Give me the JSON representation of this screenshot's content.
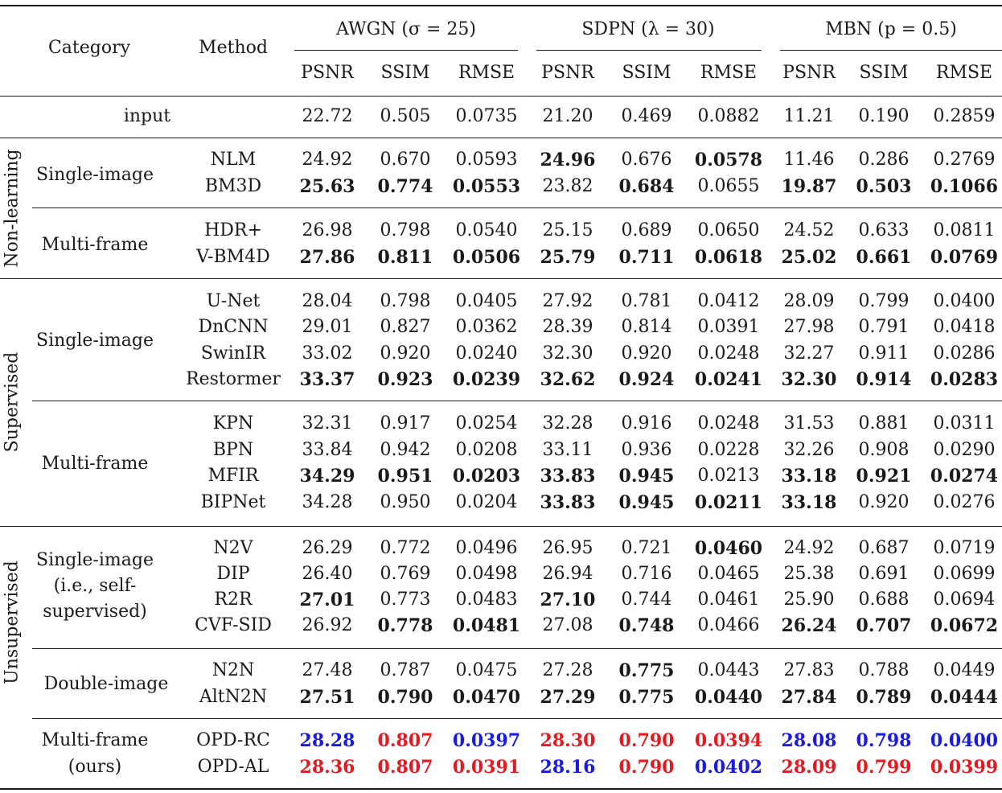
{
  "header": {
    "category": "Category",
    "method": "Method",
    "groups": [
      "AWGN (σ = 25)",
      "SDPN (λ = 30)",
      "MBN (p = 0.5)"
    ],
    "metrics": [
      "PSNR",
      "SSIM",
      "RMSE",
      "PSNR",
      "SSIM",
      "RMSE",
      "PSNR",
      "SSIM",
      "RMSE"
    ]
  },
  "input_row": {
    "label": "input",
    "values": [
      "22.72",
      "0.505",
      "0.0735",
      "21.20",
      "0.469",
      "0.0882",
      "11.21",
      "0.190",
      "0.2859"
    ]
  },
  "categories": {
    "nonlearning": "Non-learning",
    "supervised": "Supervised",
    "unsupervised": "Unsupervised"
  },
  "subcats": {
    "nl_single": "Single-image",
    "nl_multi": "Multi-frame",
    "sup_single": "Single-image",
    "sup_multi": "Multi-frame",
    "uns_single": [
      "Single-image",
      "(i.e., self-",
      "supervised)"
    ],
    "uns_double": "Double-image",
    "ours": [
      "Multi-frame",
      "(ours)"
    ]
  },
  "rows": [
    {
      "method": "NLM",
      "values": [
        "24.92",
        "0.670",
        "0.0593",
        "24.96",
        "0.676",
        "0.0578",
        "11.46",
        "0.286",
        "0.2769"
      ],
      "bold": [
        3,
        5
      ]
    },
    {
      "method": "BM3D",
      "values": [
        "25.63",
        "0.774",
        "0.0553",
        "23.82",
        "0.684",
        "0.0655",
        "19.87",
        "0.503",
        "0.1066"
      ],
      "bold": [
        0,
        1,
        2,
        4,
        6,
        7,
        8
      ]
    },
    {
      "method": "HDR+",
      "values": [
        "26.98",
        "0.798",
        "0.0540",
        "25.15",
        "0.689",
        "0.0650",
        "24.52",
        "0.633",
        "0.0811"
      ],
      "bold": []
    },
    {
      "method": "V-BM4D",
      "values": [
        "27.86",
        "0.811",
        "0.0506",
        "25.79",
        "0.711",
        "0.0618",
        "25.02",
        "0.661",
        "0.0769"
      ],
      "bold": [
        0,
        1,
        2,
        3,
        4,
        5,
        6,
        7,
        8
      ]
    },
    {
      "method": "U-Net",
      "values": [
        "28.04",
        "0.798",
        "0.0405",
        "27.92",
        "0.781",
        "0.0412",
        "28.09",
        "0.799",
        "0.0400"
      ],
      "bold": []
    },
    {
      "method": "DnCNN",
      "values": [
        "29.01",
        "0.827",
        "0.0362",
        "28.39",
        "0.814",
        "0.0391",
        "27.98",
        "0.791",
        "0.0418"
      ],
      "bold": []
    },
    {
      "method": "SwinIR",
      "values": [
        "33.02",
        "0.920",
        "0.0240",
        "32.30",
        "0.920",
        "0.0248",
        "32.27",
        "0.911",
        "0.0286"
      ],
      "bold": []
    },
    {
      "method": "Restormer",
      "values": [
        "33.37",
        "0.923",
        "0.0239",
        "32.62",
        "0.924",
        "0.0241",
        "32.30",
        "0.914",
        "0.0283"
      ],
      "bold": [
        0,
        1,
        2,
        3,
        4,
        5,
        6,
        7,
        8
      ]
    },
    {
      "method": "KPN",
      "values": [
        "32.31",
        "0.917",
        "0.0254",
        "32.28",
        "0.916",
        "0.0248",
        "31.53",
        "0.881",
        "0.0311"
      ],
      "bold": []
    },
    {
      "method": "BPN",
      "values": [
        "33.84",
        "0.942",
        "0.0208",
        "33.11",
        "0.936",
        "0.0228",
        "32.26",
        "0.908",
        "0.0290"
      ],
      "bold": []
    },
    {
      "method": "MFIR",
      "values": [
        "34.29",
        "0.951",
        "0.0203",
        "33.83",
        "0.945",
        "0.0213",
        "33.18",
        "0.921",
        "0.0274"
      ],
      "bold": [
        0,
        1,
        2,
        3,
        4,
        6,
        7,
        8
      ]
    },
    {
      "method": "BIPNet",
      "values": [
        "34.28",
        "0.950",
        "0.0204",
        "33.83",
        "0.945",
        "0.0211",
        "33.18",
        "0.920",
        "0.0276"
      ],
      "bold": [
        3,
        4,
        5,
        6
      ]
    },
    {
      "method": "N2V",
      "values": [
        "26.29",
        "0.772",
        "0.0496",
        "26.95",
        "0.721",
        "0.0460",
        "24.92",
        "0.687",
        "0.0719"
      ],
      "bold": [
        5
      ]
    },
    {
      "method": "DIP",
      "values": [
        "26.40",
        "0.769",
        "0.0498",
        "26.94",
        "0.716",
        "0.0465",
        "25.38",
        "0.691",
        "0.0699"
      ],
      "bold": []
    },
    {
      "method": "R2R",
      "values": [
        "27.01",
        "0.773",
        "0.0483",
        "27.10",
        "0.744",
        "0.0461",
        "25.90",
        "0.688",
        "0.0694"
      ],
      "bold": [
        0,
        3
      ]
    },
    {
      "method": "CVF-SID",
      "values": [
        "26.92",
        "0.778",
        "0.0481",
        "27.08",
        "0.748",
        "0.0466",
        "26.24",
        "0.707",
        "0.0672"
      ],
      "bold": [
        1,
        2,
        4,
        6,
        7,
        8
      ]
    },
    {
      "method": "N2N",
      "values": [
        "27.48",
        "0.787",
        "0.0475",
        "27.28",
        "0.775",
        "0.0443",
        "27.83",
        "0.788",
        "0.0449"
      ],
      "bold": [
        4
      ]
    },
    {
      "method": "AltN2N",
      "values": [
        "27.51",
        "0.790",
        "0.0470",
        "27.29",
        "0.775",
        "0.0440",
        "27.84",
        "0.789",
        "0.0444"
      ],
      "bold": [
        0,
        1,
        2,
        3,
        4,
        5,
        6,
        7,
        8
      ]
    },
    {
      "method": "OPD-RC",
      "values": [
        "28.28",
        "0.807",
        "0.0397",
        "28.30",
        "0.790",
        "0.0394",
        "28.08",
        "0.798",
        "0.0400"
      ],
      "bold": [
        0,
        1,
        2,
        3,
        4,
        5,
        6,
        7,
        8
      ],
      "colors": [
        "blue",
        "red",
        "blue",
        "red",
        "red",
        "red",
        "blue",
        "blue",
        "blue"
      ]
    },
    {
      "method": "OPD-AL",
      "values": [
        "28.36",
        "0.807",
        "0.0391",
        "28.16",
        "0.790",
        "0.0402",
        "28.09",
        "0.799",
        "0.0399"
      ],
      "bold": [
        0,
        1,
        2,
        3,
        4,
        5,
        6,
        7,
        8
      ],
      "colors": [
        "red",
        "red",
        "red",
        "blue",
        "red",
        "blue",
        "red",
        "red",
        "red"
      ]
    }
  ],
  "colors": {
    "red": "#e8181e",
    "blue": "#1a1ae8"
  }
}
